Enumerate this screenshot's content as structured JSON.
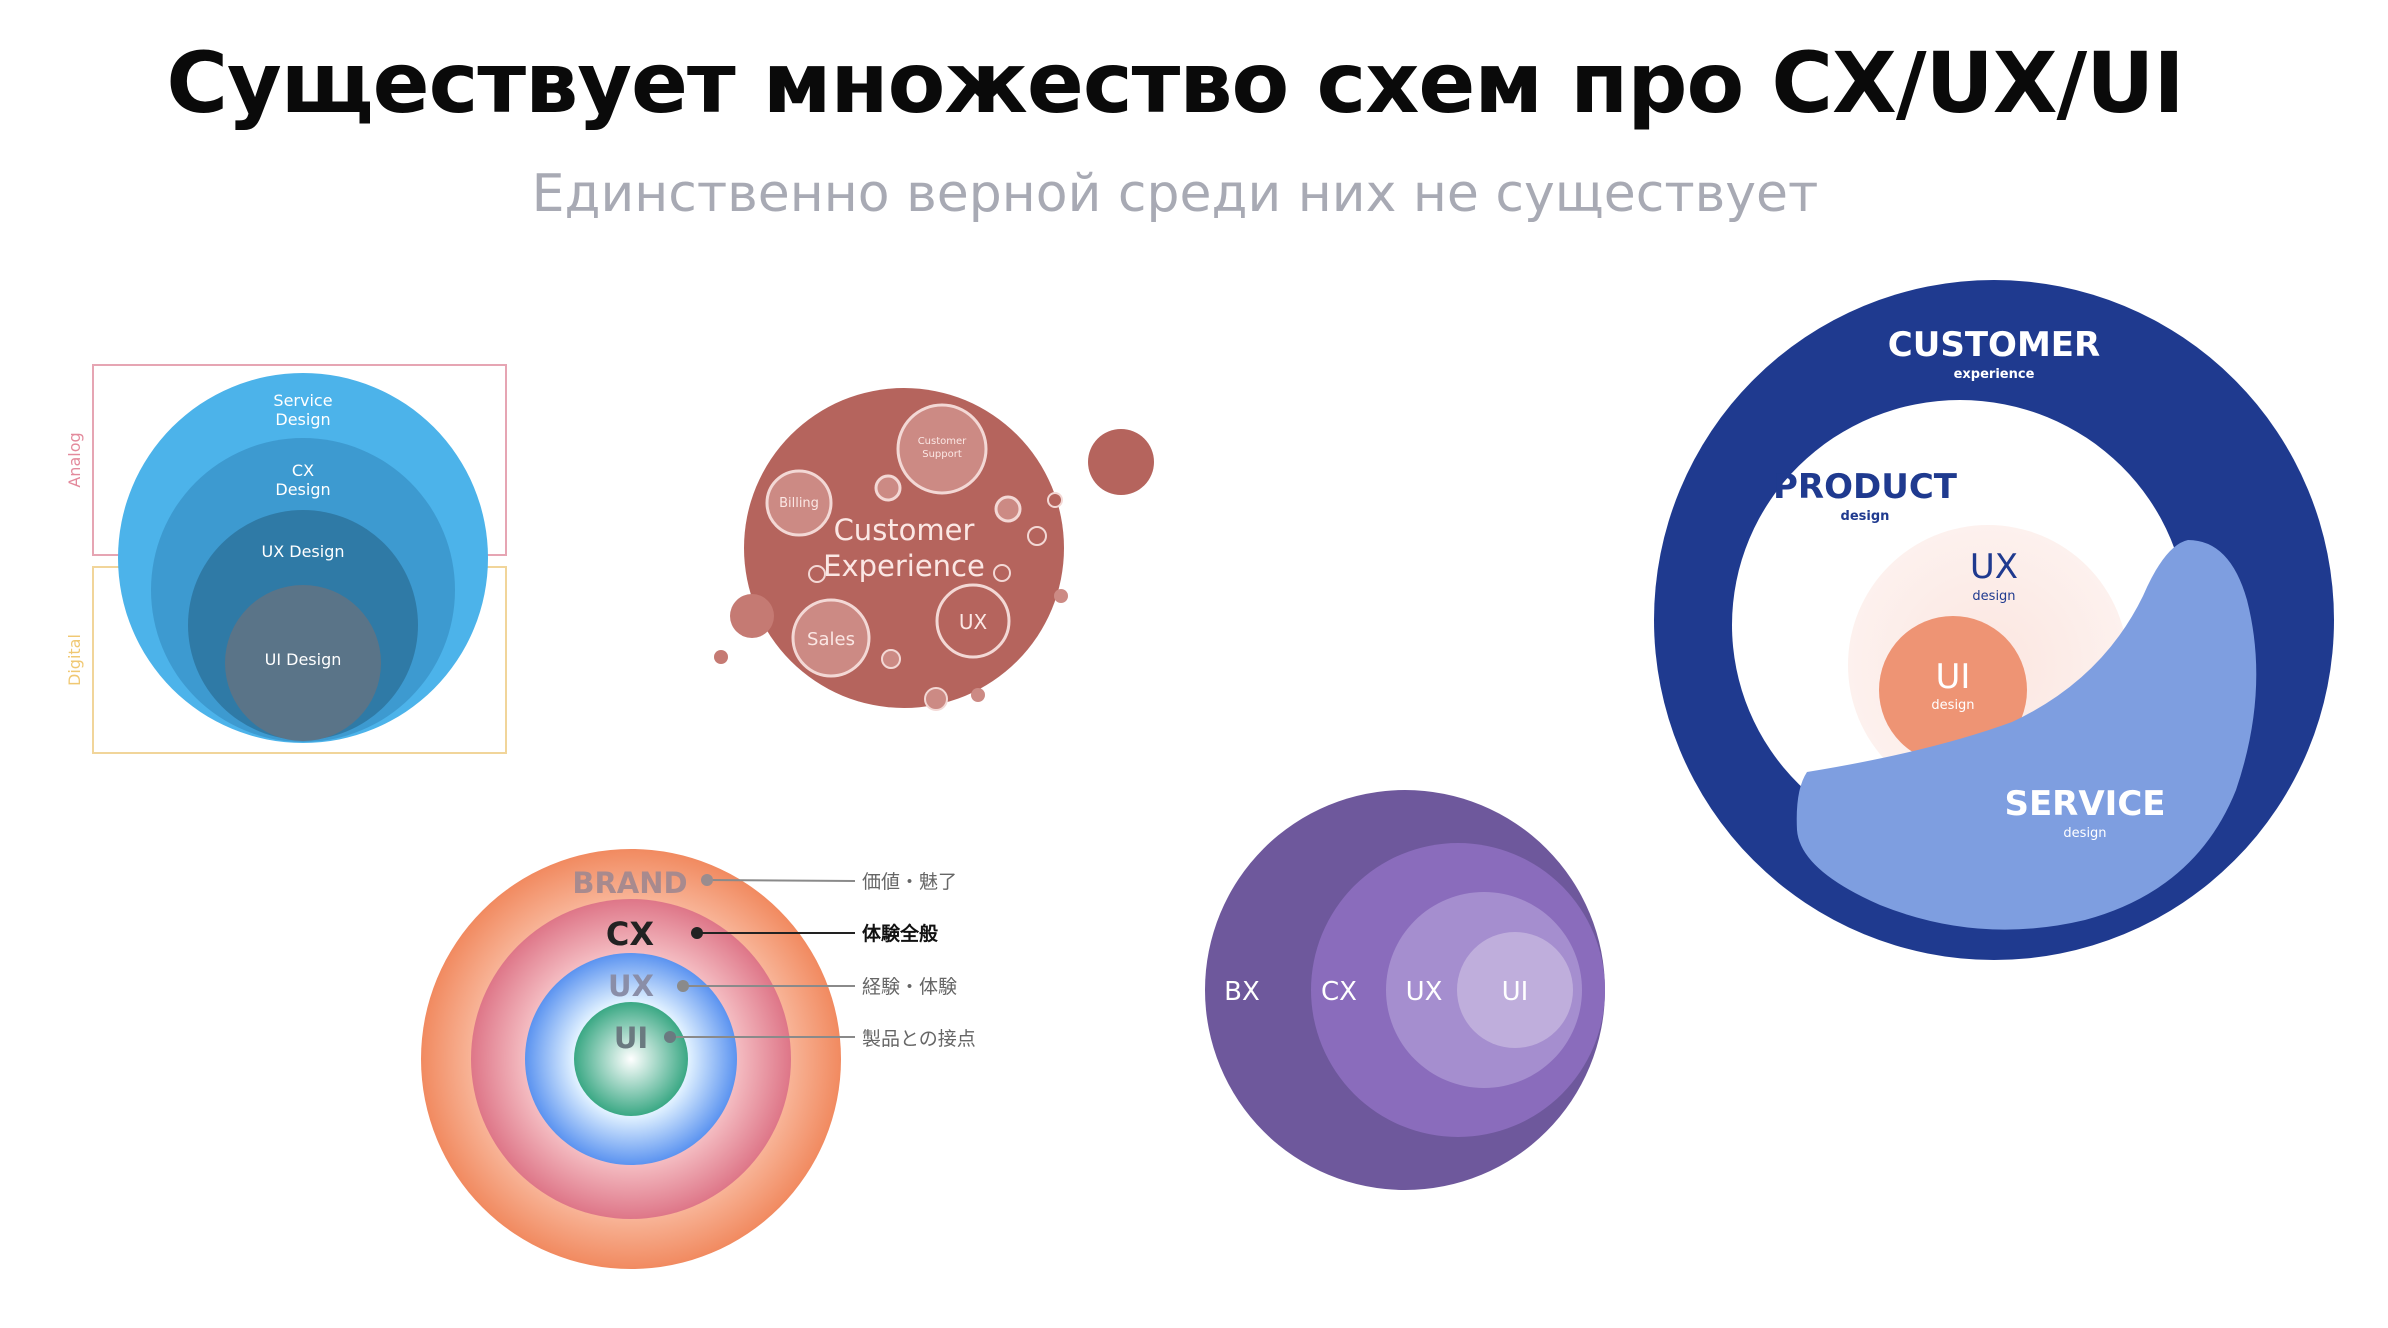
{
  "slide": {
    "title": "Существует множество схем про CX/UX/UI",
    "subtitle": "Единственно верной среди них не существует"
  },
  "diagram_blue": {
    "service": "Service\nDesign",
    "cx": "CX\nDesign",
    "ux": "UX Design",
    "ui": "UI Design",
    "analog": "Analog",
    "digital": "Digital"
  },
  "diagram_red": {
    "center": "Customer\nExperience",
    "support": "Customer\nSupport",
    "billing": "Billing",
    "sales": "Sales",
    "ux": "UX"
  },
  "diagram_rings": {
    "brand": "BRAND",
    "cx": "CX",
    "ux": "UX",
    "ui": "UI",
    "brand_note": "価値・魅了",
    "cx_note": "体験全般",
    "ux_note": "経験・体験",
    "ui_note": "製品との接点"
  },
  "diagram_purple": {
    "bx": "BX",
    "cx": "CX",
    "ux": "UX",
    "ui": "UI"
  },
  "diagram_navy": {
    "customer": "CUSTOMER",
    "customer_sub": "experience",
    "product": "PRODUCT",
    "product_sub": "design",
    "ux": "UX",
    "ux_sub": "design",
    "ui": "UI",
    "ui_sub": "design",
    "service": "SERVICE",
    "service_sub": "design"
  },
  "colors": {
    "blue_outer": "#4cb3ea",
    "blue_mid": "#3d9ad0",
    "blue_inner": "#2f7aa6",
    "blue_core": "#5a7488",
    "red_main": "#b5645d",
    "navy": "#1f3a8f",
    "service_blue": "#7e9ee0",
    "purple_outer": "#6e589c"
  }
}
